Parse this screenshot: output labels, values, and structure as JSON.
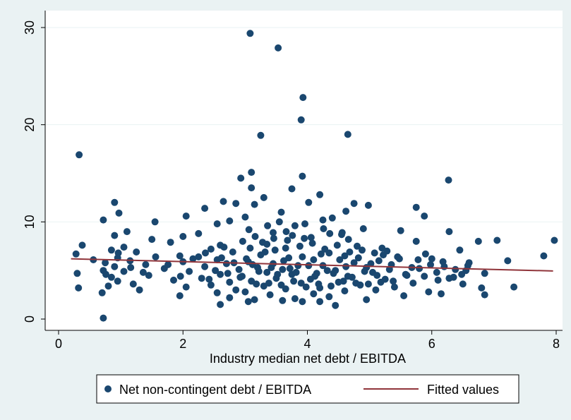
{
  "chart_data": {
    "type": "scatter",
    "title": "",
    "xlabel": "Industry median net debt / EBITDA",
    "ylabel": "",
    "xlim": [
      0,
      8
    ],
    "ylim": [
      0,
      30
    ],
    "x_ticks": [
      0,
      2,
      4,
      6,
      8
    ],
    "y_ticks": [
      0,
      10,
      20,
      30
    ],
    "grid": "horizontal",
    "legend_position": "bottom",
    "colors": {
      "scatter": "#1a476f",
      "fit": "#90353b",
      "plot_background": "#ffffff",
      "page_background": "#eaf2f3",
      "grid": "#eaf2f3"
    },
    "series": [
      {
        "name": "Net non-contingent debt / EBITDA",
        "kind": "scatter",
        "points": [
          [
            0.33,
            16.9
          ],
          [
            3.08,
            29.4
          ],
          [
            3.53,
            27.9
          ],
          [
            3.93,
            22.8
          ],
          [
            3.9,
            20.5
          ],
          [
            4.65,
            19.0
          ],
          [
            3.25,
            18.9
          ],
          [
            3.1,
            15.1
          ],
          [
            3.92,
            14.7
          ],
          [
            2.93,
            14.5
          ],
          [
            6.27,
            14.3
          ],
          [
            3.1,
            13.5
          ],
          [
            3.75,
            13.4
          ],
          [
            4.2,
            12.8
          ],
          [
            3.3,
            12.5
          ],
          [
            2.65,
            12.1
          ],
          [
            0.9,
            12.0
          ],
          [
            4.02,
            12.0
          ],
          [
            4.75,
            11.9
          ],
          [
            2.85,
            11.9
          ],
          [
            3.15,
            11.8
          ],
          [
            5.75,
            11.5
          ],
          [
            2.35,
            11.4
          ],
          [
            4.98,
            11.7
          ],
          [
            4.62,
            11.1
          ],
          [
            3.58,
            11.0
          ],
          [
            0.97,
            10.9
          ],
          [
            5.88,
            10.6
          ],
          [
            2.05,
            10.6
          ],
          [
            3.0,
            10.5
          ],
          [
            4.4,
            10.4
          ],
          [
            0.72,
            10.2
          ],
          [
            3.55,
            10.0
          ],
          [
            4.25,
            10.2
          ],
          [
            2.75,
            10.1
          ],
          [
            1.55,
            10.0
          ],
          [
            2.55,
            9.8
          ],
          [
            3.8,
            9.6
          ],
          [
            4.9,
            9.3
          ],
          [
            1.1,
            9.0
          ],
          [
            5.5,
            9.1
          ],
          [
            6.28,
            9.0
          ],
          [
            3.45,
            8.9
          ],
          [
            2.25,
            8.8
          ],
          [
            4.55,
            8.7
          ],
          [
            0.9,
            8.6
          ],
          [
            2.0,
            8.5
          ],
          [
            3.95,
            8.3
          ],
          [
            1.5,
            8.2
          ],
          [
            7.05,
            8.1
          ],
          [
            7.97,
            8.1
          ],
          [
            6.75,
            8.0
          ],
          [
            5.75,
            8.0
          ],
          [
            1.8,
            7.9
          ],
          [
            0.38,
            7.6
          ],
          [
            3.35,
            7.7
          ],
          [
            2.6,
            7.6
          ],
          [
            4.8,
            7.5
          ],
          [
            1.05,
            7.4
          ],
          [
            5.2,
            7.3
          ],
          [
            2.45,
            7.2
          ],
          [
            3.65,
            7.3
          ],
          [
            6.45,
            7.1
          ],
          [
            0.85,
            7.1
          ],
          [
            1.25,
            6.9
          ],
          [
            2.8,
            6.9
          ],
          [
            4.35,
            6.8
          ],
          [
            5.9,
            6.7
          ],
          [
            0.28,
            6.7
          ],
          [
            7.8,
            6.5
          ],
          [
            3.25,
            6.6
          ],
          [
            1.95,
            6.5
          ],
          [
            4.6,
            6.5
          ],
          [
            2.25,
            6.4
          ],
          [
            5.45,
            6.4
          ],
          [
            0.95,
            6.3
          ],
          [
            3.7,
            6.3
          ],
          [
            6.0,
            6.2
          ],
          [
            2.55,
            6.1
          ],
          [
            4.1,
            6.1
          ],
          [
            1.15,
            6.0
          ],
          [
            7.22,
            6.0
          ],
          [
            5.15,
            6.0
          ],
          [
            3.05,
            5.9
          ],
          [
            2.0,
            5.9
          ],
          [
            4.75,
            5.8
          ],
          [
            0.75,
            5.8
          ],
          [
            6.6,
            5.8
          ],
          [
            3.45,
            5.7
          ],
          [
            2.7,
            5.7
          ],
          [
            5.35,
            5.6
          ],
          [
            1.4,
            5.6
          ],
          [
            4.25,
            5.5
          ],
          [
            3.85,
            5.5
          ],
          [
            6.2,
            5.4
          ],
          [
            0.9,
            5.4
          ],
          [
            2.35,
            5.4
          ],
          [
            4.95,
            5.3
          ],
          [
            3.2,
            5.3
          ],
          [
            5.8,
            5.2
          ],
          [
            1.7,
            5.2
          ],
          [
            3.6,
            5.1
          ],
          [
            2.9,
            5.1
          ],
          [
            4.45,
            5.0
          ],
          [
            0.72,
            5.0
          ],
          [
            6.55,
            5.0
          ],
          [
            1.05,
            4.9
          ],
          [
            2.1,
            4.9
          ],
          [
            5.05,
            4.8
          ],
          [
            3.35,
            4.8
          ],
          [
            4.15,
            4.7
          ],
          [
            0.3,
            4.7
          ],
          [
            6.85,
            4.7
          ],
          [
            2.6,
            4.6
          ],
          [
            3.75,
            4.6
          ],
          [
            1.45,
            4.5
          ],
          [
            5.6,
            4.5
          ],
          [
            4.65,
            4.4
          ],
          [
            2.95,
            4.4
          ],
          [
            6.35,
            4.3
          ],
          [
            0.85,
            4.3
          ],
          [
            3.5,
            4.2
          ],
          [
            2.3,
            4.2
          ],
          [
            5.25,
            4.1
          ],
          [
            4.05,
            4.1
          ],
          [
            1.85,
            4.0
          ],
          [
            6.1,
            4.0
          ],
          [
            3.1,
            3.9
          ],
          [
            0.95,
            3.9
          ],
          [
            4.5,
            3.8
          ],
          [
            2.75,
            3.8
          ],
          [
            5.7,
            3.7
          ],
          [
            3.9,
            3.7
          ],
          [
            1.2,
            3.6
          ],
          [
            6.5,
            3.6
          ],
          [
            2.45,
            3.5
          ],
          [
            4.85,
            3.5
          ],
          [
            3.3,
            3.4
          ],
          [
            0.8,
            3.4
          ],
          [
            5.4,
            3.3
          ],
          [
            7.32,
            3.3
          ],
          [
            2.05,
            3.3
          ],
          [
            4.2,
            3.2
          ],
          [
            0.32,
            3.2
          ],
          [
            6.8,
            3.2
          ],
          [
            3.65,
            3.1
          ],
          [
            2.85,
            3.0
          ],
          [
            5.1,
            3.0
          ],
          [
            1.3,
            3.0
          ],
          [
            4.6,
            2.9
          ],
          [
            3.0,
            2.8
          ],
          [
            5.95,
            2.8
          ],
          [
            0.7,
            2.7
          ],
          [
            2.55,
            2.7
          ],
          [
            4.1,
            2.6
          ],
          [
            6.85,
            2.5
          ],
          [
            3.4,
            2.5
          ],
          [
            1.95,
            2.4
          ],
          [
            5.55,
            2.4
          ],
          [
            4.35,
            2.3
          ],
          [
            2.75,
            2.2
          ],
          [
            3.8,
            2.1
          ],
          [
            6.15,
            2.6
          ],
          [
            3.15,
            2.0
          ],
          [
            4.95,
            2.0
          ],
          [
            3.6,
            1.9
          ],
          [
            4.2,
            1.8
          ],
          [
            3.05,
            1.8
          ],
          [
            3.92,
            1.8
          ],
          [
            2.6,
            1.5
          ],
          [
            4.45,
            1.4
          ],
          [
            0.72,
            0.1
          ],
          [
            3.02,
            6.2
          ],
          [
            3.12,
            5.6
          ],
          [
            3.22,
            4.9
          ],
          [
            3.32,
            6.9
          ],
          [
            3.42,
            5.3
          ],
          [
            3.52,
            4.6
          ],
          [
            3.62,
            6.0
          ],
          [
            3.72,
            5.2
          ],
          [
            3.82,
            4.8
          ],
          [
            3.92,
            6.4
          ],
          [
            4.02,
            5.5
          ],
          [
            4.12,
            4.4
          ],
          [
            4.22,
            6.7
          ],
          [
            4.32,
            5.0
          ],
          [
            4.42,
            4.7
          ],
          [
            4.52,
            6.1
          ],
          [
            4.62,
            5.4
          ],
          [
            4.72,
            4.3
          ],
          [
            4.82,
            6.3
          ],
          [
            4.92,
            4.9
          ],
          [
            5.02,
            5.7
          ],
          [
            5.12,
            4.5
          ],
          [
            5.22,
            6.6
          ],
          [
            5.32,
            5.1
          ],
          [
            2.92,
            4.3
          ],
          [
            2.82,
            5.8
          ],
          [
            2.72,
            4.7
          ],
          [
            2.62,
            6.3
          ],
          [
            2.52,
            5.0
          ],
          [
            2.42,
            4.1
          ],
          [
            3.08,
            7.3
          ],
          [
            3.18,
            3.6
          ],
          [
            3.28,
            7.9
          ],
          [
            3.38,
            3.7
          ],
          [
            3.48,
            7.1
          ],
          [
            3.58,
            3.5
          ],
          [
            3.68,
            8.1
          ],
          [
            3.78,
            3.9
          ],
          [
            3.88,
            7.5
          ],
          [
            3.98,
            3.3
          ],
          [
            4.08,
            7.8
          ],
          [
            4.18,
            3.6
          ],
          [
            4.28,
            7.2
          ],
          [
            4.38,
            3.4
          ],
          [
            4.48,
            7.6
          ],
          [
            4.58,
            3.9
          ],
          [
            4.68,
            6.9
          ],
          [
            4.78,
            3.7
          ],
          [
            4.88,
            7.1
          ],
          [
            4.98,
            3.6
          ],
          [
            5.08,
            6.8
          ],
          [
            5.18,
            3.8
          ],
          [
            5.28,
            7.0
          ],
          [
            5.38,
            3.9
          ],
          [
            5.48,
            6.2
          ],
          [
            5.58,
            4.6
          ],
          [
            5.68,
            5.3
          ],
          [
            5.78,
            6.1
          ],
          [
            5.88,
            4.4
          ],
          [
            5.98,
            5.6
          ],
          [
            6.08,
            4.8
          ],
          [
            6.18,
            5.9
          ],
          [
            6.28,
            4.2
          ],
          [
            6.38,
            5.1
          ],
          [
            6.48,
            4.6
          ],
          [
            6.58,
            5.5
          ],
          [
            3.06,
            9.2
          ],
          [
            3.36,
            9.6
          ],
          [
            3.66,
            9.0
          ],
          [
            3.96,
            9.8
          ],
          [
            4.26,
            9.3
          ],
          [
            4.56,
            8.9
          ],
          [
            3.16,
            8.5
          ],
          [
            3.46,
            8.3
          ],
          [
            3.76,
            8.6
          ],
          [
            4.06,
            8.4
          ],
          [
            4.36,
            8.8
          ],
          [
            4.66,
            8.2
          ],
          [
            2.96,
            8.0
          ],
          [
            2.66,
            7.4
          ],
          [
            2.36,
            6.8
          ],
          [
            2.16,
            6.2
          ],
          [
            1.96,
            4.4
          ],
          [
            1.76,
            5.6
          ],
          [
            1.56,
            6.4
          ],
          [
            1.36,
            4.8
          ],
          [
            1.16,
            5.3
          ],
          [
            0.96,
            6.8
          ],
          [
            0.76,
            4.6
          ],
          [
            0.56,
            6.1
          ]
        ]
      },
      {
        "name": "Fitted values",
        "kind": "line",
        "points": [
          [
            0.2,
            6.2
          ],
          [
            7.95,
            4.95
          ]
        ]
      }
    ]
  }
}
